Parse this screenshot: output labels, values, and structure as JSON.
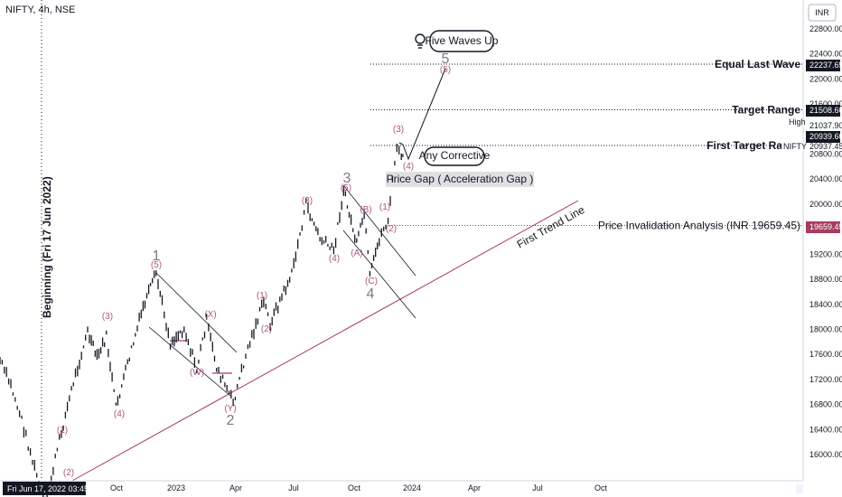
{
  "header": {
    "ticker": "NIFTY, 4h, NSE"
  },
  "chart_data": {
    "type": "line",
    "price_axis": {
      "currency": "INR",
      "ticks": [
        16000,
        16400,
        16800,
        17200,
        17600,
        18000,
        18400,
        18800,
        19200,
        20000,
        20400,
        20800,
        21600,
        22000,
        22400,
        22800
      ],
      "range": [
        15650,
        23200
      ]
    },
    "time_axis": {
      "ticks": [
        "Oct",
        "2023",
        "Apr",
        "Jul",
        "Oct",
        "2024",
        "Apr",
        "Jul",
        "Oct"
      ],
      "cursor_label": "Fri Jun 17, 2022",
      "cursor_time": "03:45"
    },
    "price_tags": [
      {
        "value": "22237.65",
        "color": "#131722"
      },
      {
        "value": "21508.60",
        "color": "#131722"
      },
      {
        "value": "21037.90",
        "color": "plain"
      },
      {
        "value": "High",
        "color": "plain"
      },
      {
        "value": "20939.60",
        "color": "#131722"
      },
      {
        "value": "20937.45",
        "color": "plain"
      },
      {
        "value": "NIFTY",
        "color": "plain"
      },
      {
        "value": "19659.45",
        "color": "#a83c5c"
      }
    ],
    "levels": [
      {
        "label": "Equal Last Wave",
        "value": 22237.65
      },
      {
        "label": "Target Range",
        "value": 21508.6
      },
      {
        "label": "First Target Ra",
        "value": 20937.45
      },
      {
        "label": "Price Invalidation Analysis (INR 19659.45)",
        "value": 19659.45
      }
    ],
    "annotations": {
      "beginning": "Beginning (Fri 17 Jun 2022)",
      "first_trend_line": "First Trend Line",
      "price_gap": "Price Gap ( Acceleration Gap )",
      "any_corrective": "Any Corrective",
      "five_waves_up": "Five Waves Up"
    },
    "wave_labels": {
      "big": [
        "1",
        "2",
        "3",
        "4",
        "5"
      ],
      "minor": [
        "(1)",
        "(2)",
        "(3)",
        "(4)",
        "(5)",
        "(W)",
        "(X)",
        "(Y)",
        "(A)",
        "(B)",
        "(C)"
      ]
    },
    "series": [
      {
        "values": [
          {
            "x": "2022-06-17",
            "y": 15183
          },
          {
            "x": "2022-07-08",
            "y": 16220
          },
          {
            "x": "2022-07-29",
            "y": 17158
          },
          {
            "x": "2022-08-19",
            "y": 17956
          },
          {
            "x": "2022-09-02",
            "y": 17540
          },
          {
            "x": "2022-09-16",
            "y": 17880
          },
          {
            "x": "2022-09-30",
            "y": 16747
          },
          {
            "x": "2022-10-21",
            "y": 17560
          },
          {
            "x": "2022-11-11",
            "y": 18350
          },
          {
            "x": "2022-12-01",
            "y": 18887
          },
          {
            "x": "2022-12-23",
            "y": 17780
          },
          {
            "x": "2023-01-13",
            "y": 18020
          },
          {
            "x": "2023-02-01",
            "y": 17353
          },
          {
            "x": "2023-02-16",
            "y": 18134
          },
          {
            "x": "2023-03-03",
            "y": 17400
          },
          {
            "x": "2023-03-28",
            "y": 16828
          },
          {
            "x": "2023-04-20",
            "y": 17700
          },
          {
            "x": "2023-05-15",
            "y": 18450
          },
          {
            "x": "2023-05-25",
            "y": 18100
          },
          {
            "x": "2023-06-28",
            "y": 18880
          },
          {
            "x": "2023-07-20",
            "y": 19991
          },
          {
            "x": "2023-08-10",
            "y": 19450
          },
          {
            "x": "2023-08-31",
            "y": 19255
          },
          {
            "x": "2023-09-15",
            "y": 20222
          },
          {
            "x": "2023-10-05",
            "y": 19350
          },
          {
            "x": "2023-10-17",
            "y": 19850
          },
          {
            "x": "2023-10-26",
            "y": 18837
          },
          {
            "x": "2023-11-10",
            "y": 19450
          },
          {
            "x": "2023-11-24",
            "y": 19750
          },
          {
            "x": "2023-12-08",
            "y": 20940
          },
          {
            "x": "2023-12-15",
            "y": 20700
          },
          {
            "x": "2023-12-20",
            "y": 20930
          }
        ]
      }
    ]
  }
}
